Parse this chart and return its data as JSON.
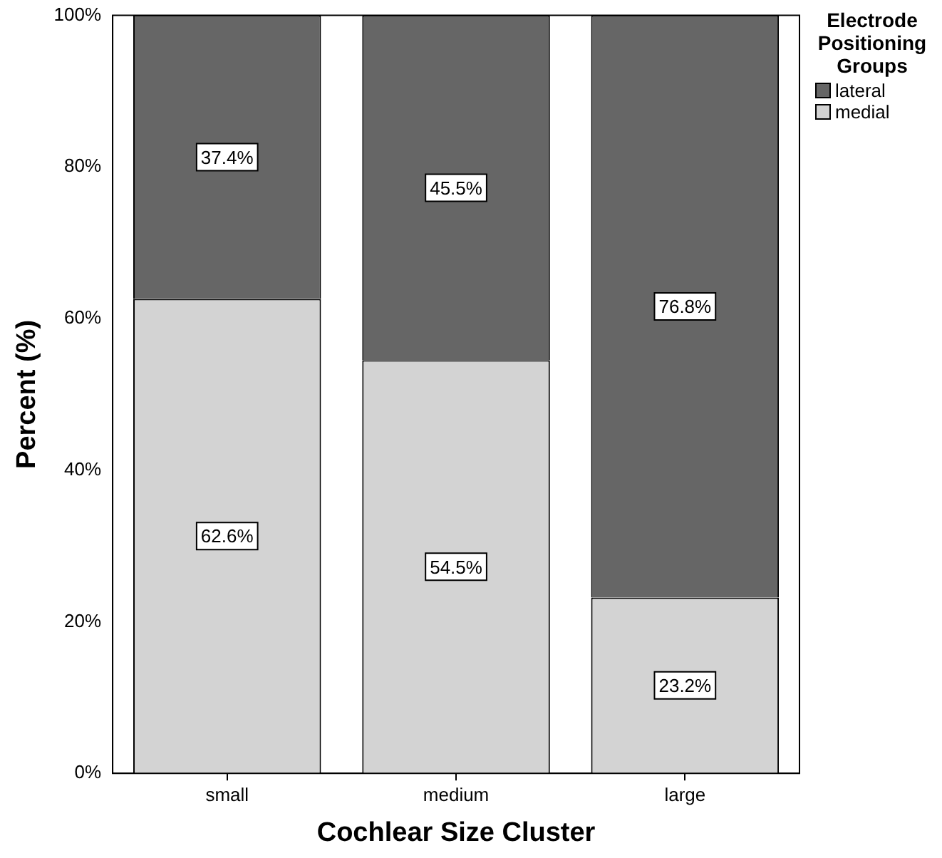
{
  "chart_data": {
    "type": "bar",
    "stacked": true,
    "xlabel": "Cochlear Size Cluster",
    "ylabel": "Percent (%)",
    "legend_title": "Electrode Positioning Groups",
    "legend": "top right",
    "grid": false,
    "categories": [
      "small",
      "medium",
      "large"
    ],
    "series": [
      {
        "name": "medial",
        "color": "#d3d3d3",
        "values": [
          62.6,
          54.5,
          23.2
        ],
        "value_labels": [
          "62.6%",
          "54.5%",
          "23.2%"
        ]
      },
      {
        "name": "lateral",
        "color": "#666666",
        "values": [
          37.4,
          45.5,
          76.8
        ],
        "value_labels": [
          "37.4%",
          "45.5%",
          "76.8%"
        ]
      }
    ],
    "ylim": [
      0,
      100
    ],
    "yticks": [
      {
        "value": 0,
        "label": "0%"
      },
      {
        "value": 20,
        "label": "20%"
      },
      {
        "value": 40,
        "label": "40%"
      },
      {
        "value": 60,
        "label": "60%"
      },
      {
        "value": 80,
        "label": "80%"
      },
      {
        "value": 100,
        "label": "100%"
      }
    ]
  }
}
